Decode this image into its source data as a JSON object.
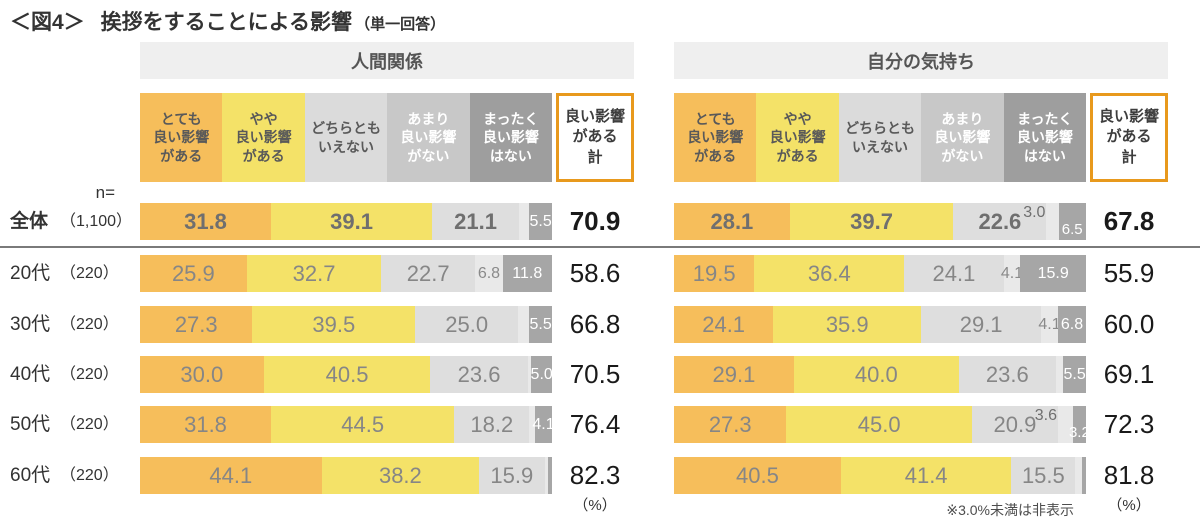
{
  "title": {
    "prefix": "＜図4＞",
    "main": "挨拶をすることによる影響",
    "sub": "（単一回答）"
  },
  "n_equals_label": "n=",
  "percent_label": "（%）",
  "footnote": "※3.0%未満は非表示",
  "colors": {
    "very_good": "#F6BE5B",
    "somewhat_good": "#F4E268",
    "neither_legend": "#DBDBDB",
    "neither_bar": "#DEDEDE",
    "not_much_legend": "#C8C8C8",
    "not_much_bar": "#E9E9E9",
    "none_legend": "#9E9E9E",
    "none_bar": "#A6A6A6",
    "total_border": "#E8991D",
    "header_bg": "#EFEFEF",
    "legend_dark_text": "#595959",
    "legend_white_text": "#FFFFFF"
  },
  "legend": {
    "items": [
      {
        "key": "very-good",
        "lines": [
          "とても",
          "良い影響",
          "がある"
        ],
        "bg": "very_good",
        "text": "dark"
      },
      {
        "key": "somewhat-good",
        "lines": [
          "やや",
          "良い影響",
          "がある"
        ],
        "bg": "somewhat_good",
        "text": "dark"
      },
      {
        "key": "neither",
        "lines": [
          "どちらとも",
          "いえない"
        ],
        "bg": "neither_legend",
        "text": "dark"
      },
      {
        "key": "not-much-good",
        "lines": [
          "あまり",
          "良い影響",
          "がない"
        ],
        "bg": "not_much_legend",
        "text": "white"
      },
      {
        "key": "no-good",
        "lines": [
          "まったく",
          "良い影響",
          "はない"
        ],
        "bg": "none_legend",
        "text": "white"
      }
    ],
    "total": {
      "key": "good-total",
      "lines": [
        "良い影響",
        "がある",
        "計"
      ]
    }
  },
  "rows": [
    {
      "key": "all",
      "name": "全体",
      "n": "（1,100）",
      "emphasis": true
    },
    {
      "key": "20s",
      "name": "20代",
      "n": "（220）",
      "emphasis": false
    },
    {
      "key": "30s",
      "name": "30代",
      "n": "（220）",
      "emphasis": false
    },
    {
      "key": "40s",
      "name": "40代",
      "n": "（220）",
      "emphasis": false
    },
    {
      "key": "50s",
      "name": "50代",
      "n": "（220）",
      "emphasis": false
    },
    {
      "key": "60s",
      "name": "60代",
      "n": "（220）",
      "emphasis": false
    }
  ],
  "chart_data": {
    "type": "bar",
    "subtype": "horizontal-stacked",
    "unit": "%",
    "note": "values below 3.0% are hidden (※3.0%未満は非表示)",
    "categories": [
      "とても良い影響がある",
      "やや良い影響がある",
      "どちらともいえない",
      "あまり良い影響がない",
      "まったく良い影響はない"
    ],
    "total_column": "良い影響がある計",
    "group_labels": [
      "全体（1,100）",
      "20代（220）",
      "30代（220）",
      "40代（220）",
      "50代（220）",
      "60代（220）"
    ],
    "panels": [
      {
        "title": "人間関係",
        "data": [
          {
            "values": [
              31.8,
              39.1,
              21.1,
              2.5,
              5.5
            ],
            "labels": [
              "31.8",
              "39.1",
              "21.1",
              "",
              "5.5"
            ],
            "raised": false,
            "total": "70.9"
          },
          {
            "values": [
              25.9,
              32.7,
              22.7,
              6.8,
              11.8
            ],
            "labels": [
              "25.9",
              "32.7",
              "22.7",
              "6.8",
              "11.8"
            ],
            "raised": false,
            "total": "58.6"
          },
          {
            "values": [
              27.3,
              39.5,
              25.0,
              2.7,
              5.5
            ],
            "labels": [
              "27.3",
              "39.5",
              "25.0",
              "",
              "5.5"
            ],
            "raised": false,
            "total": "66.8"
          },
          {
            "values": [
              30.0,
              40.5,
              23.6,
              0.9,
              5.0
            ],
            "labels": [
              "30.0",
              "40.5",
              "23.6",
              "",
              "5.0"
            ],
            "raised": false,
            "total": "70.5"
          },
          {
            "values": [
              31.8,
              44.5,
              18.2,
              1.4,
              4.1
            ],
            "labels": [
              "31.8",
              "44.5",
              "18.2",
              "",
              "4.1"
            ],
            "raised": false,
            "total": "76.4"
          },
          {
            "values": [
              44.1,
              38.2,
              15.9,
              0.9,
              0.9
            ],
            "labels": [
              "44.1",
              "38.2",
              "15.9",
              "",
              ""
            ],
            "raised": false,
            "total": "82.3"
          }
        ]
      },
      {
        "title": "自分の気持ち",
        "data": [
          {
            "values": [
              28.1,
              39.7,
              22.6,
              3.0,
              6.5
            ],
            "labels": [
              "28.1",
              "39.7",
              "22.6",
              "3.0",
              "6.5"
            ],
            "raised": true,
            "total": "67.8"
          },
          {
            "values": [
              19.5,
              36.4,
              24.1,
              4.1,
              15.9
            ],
            "labels": [
              "19.5",
              "36.4",
              "24.1",
              "4.1",
              "15.9"
            ],
            "raised": false,
            "total": "55.9"
          },
          {
            "values": [
              24.1,
              35.9,
              29.1,
              4.1,
              6.8
            ],
            "labels": [
              "24.1",
              "35.9",
              "29.1",
              "4.1",
              "6.8"
            ],
            "raised": false,
            "total": "60.0"
          },
          {
            "values": [
              29.1,
              40.0,
              23.6,
              1.8,
              5.5
            ],
            "labels": [
              "29.1",
              "40.0",
              "23.6",
              "",
              "5.5"
            ],
            "raised": false,
            "total": "69.1"
          },
          {
            "values": [
              27.3,
              45.0,
              20.9,
              3.6,
              3.2
            ],
            "labels": [
              "27.3",
              "45.0",
              "20.9",
              "3.6",
              "3.2"
            ],
            "raised": true,
            "total": "72.3"
          },
          {
            "values": [
              40.5,
              41.4,
              15.5,
              1.7,
              0.9
            ],
            "labels": [
              "40.5",
              "41.4",
              "15.5",
              "",
              ""
            ],
            "raised": false,
            "total": "81.8"
          }
        ]
      }
    ]
  }
}
